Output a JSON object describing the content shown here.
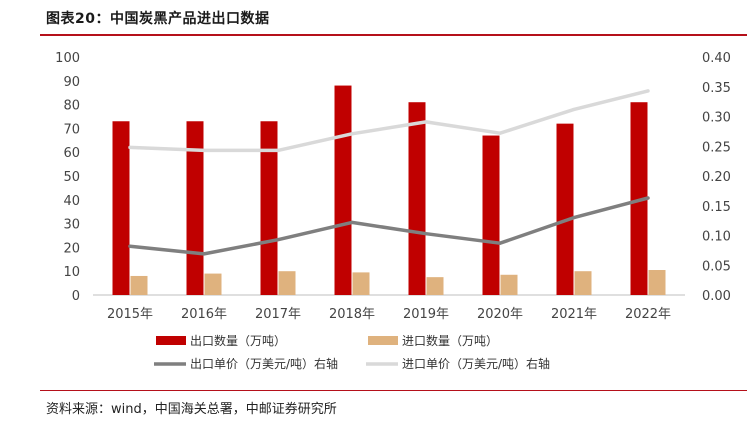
{
  "header": {
    "title": "图表20：中国炭黑产品进出口数据"
  },
  "footer": {
    "source": "资料来源：wind，中国海关总署，中邮证券研究所"
  },
  "chart_data": {
    "type": "bar",
    "categories": [
      "2015年",
      "2016年",
      "2017年",
      "2018年",
      "2019年",
      "2020年",
      "2021年",
      "2022年"
    ],
    "series": [
      {
        "name": "出口数量（万吨）",
        "kind": "bar",
        "axis": "left",
        "color": "#c00000",
        "values": [
          73,
          73,
          73,
          88,
          81,
          67,
          72,
          81
        ]
      },
      {
        "name": "进口数量（万吨）",
        "kind": "bar",
        "axis": "left",
        "color": "#dfb27e",
        "values": [
          8,
          9,
          10,
          9.5,
          7.5,
          8.5,
          10,
          10.5
        ]
      },
      {
        "name": "出口单价（万美元/吨）右轴",
        "kind": "line",
        "axis": "right",
        "color": "#7f7f7f",
        "values": [
          0.082,
          0.069,
          0.093,
          0.122,
          0.103,
          0.087,
          0.13,
          0.163
        ]
      },
      {
        "name": "进口单价（万美元/吨）右轴",
        "kind": "line",
        "axis": "right",
        "color": "#d9d9d9",
        "values": [
          0.248,
          0.243,
          0.243,
          0.271,
          0.291,
          0.272,
          0.312,
          0.343
        ]
      }
    ],
    "y_left": {
      "min": 0,
      "max": 100,
      "step": 10,
      "tick_labels": [
        "0",
        "10",
        "20",
        "30",
        "40",
        "50",
        "60",
        "70",
        "80",
        "90",
        "100"
      ]
    },
    "y_right": {
      "min": 0,
      "max": 0.4,
      "step": 0.05,
      "tick_labels": [
        "0.00",
        "0.05",
        "0.10",
        "0.15",
        "0.20",
        "0.25",
        "0.30",
        "0.35",
        "0.40"
      ]
    },
    "grid": false,
    "legend_position": "bottom"
  }
}
